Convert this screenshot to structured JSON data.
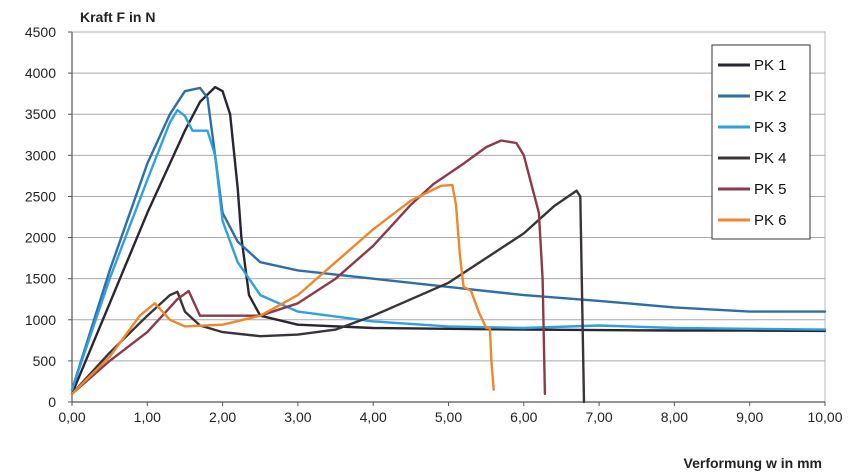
{
  "chart_data": {
    "type": "line",
    "title": "",
    "ylabel": "Kraft F in N",
    "xlabel": "Verformung w in mm",
    "xlim": [
      0,
      10
    ],
    "ylim": [
      0,
      4500
    ],
    "x_ticks": [
      0,
      1,
      2,
      3,
      4,
      5,
      6,
      7,
      8,
      9,
      10
    ],
    "x_tick_labels": [
      "0,00",
      "1,00",
      "2,00",
      "3,00",
      "4,00",
      "5,00",
      "6,00",
      "7,00",
      "8,00",
      "9,00",
      "10,00"
    ],
    "y_ticks": [
      0,
      500,
      1000,
      1500,
      2000,
      2500,
      3000,
      3500,
      4000,
      4500
    ],
    "y_tick_labels": [
      "0",
      "500",
      "1000",
      "1500",
      "2000",
      "2500",
      "3000",
      "3500",
      "4000",
      "4500"
    ],
    "grid": "horizontal",
    "legend_position": "top-right",
    "series": [
      {
        "name": "PK 1",
        "color": "#2a2530",
        "points": [
          [
            0,
            100
          ],
          [
            0.5,
            1200
          ],
          [
            1,
            2300
          ],
          [
            1.5,
            3300
          ],
          [
            1.7,
            3650
          ],
          [
            1.9,
            3830
          ],
          [
            2.0,
            3780
          ],
          [
            2.1,
            3500
          ],
          [
            2.2,
            2600
          ],
          [
            2.25,
            2000
          ],
          [
            2.35,
            1300
          ],
          [
            2.5,
            1050
          ],
          [
            3,
            940
          ],
          [
            4,
            900
          ],
          [
            5,
            890
          ],
          [
            6,
            880
          ],
          [
            7,
            875
          ],
          [
            8,
            870
          ],
          [
            9,
            868
          ],
          [
            10,
            865
          ]
        ]
      },
      {
        "name": "PK 2",
        "color": "#2e6ea8",
        "points": [
          [
            0,
            150
          ],
          [
            0.5,
            1600
          ],
          [
            1,
            2900
          ],
          [
            1.3,
            3500
          ],
          [
            1.5,
            3780
          ],
          [
            1.7,
            3820
          ],
          [
            1.8,
            3700
          ],
          [
            1.9,
            3000
          ],
          [
            2.0,
            2300
          ],
          [
            2.2,
            1950
          ],
          [
            2.5,
            1700
          ],
          [
            3,
            1600
          ],
          [
            4,
            1500
          ],
          [
            5,
            1400
          ],
          [
            6,
            1300
          ],
          [
            7,
            1230
          ],
          [
            8,
            1150
          ],
          [
            9,
            1100
          ],
          [
            10,
            1100
          ]
        ]
      },
      {
        "name": "PK 3",
        "color": "#2f9fe0",
        "points": [
          [
            0,
            150
          ],
          [
            0.5,
            1500
          ],
          [
            1,
            2700
          ],
          [
            1.3,
            3400
          ],
          [
            1.4,
            3550
          ],
          [
            1.5,
            3480
          ],
          [
            1.6,
            3300
          ],
          [
            1.8,
            3300
          ],
          [
            1.9,
            3000
          ],
          [
            2.0,
            2200
          ],
          [
            2.2,
            1700
          ],
          [
            2.5,
            1300
          ],
          [
            3,
            1100
          ],
          [
            4,
            980
          ],
          [
            5,
            920
          ],
          [
            6,
            900
          ],
          [
            7,
            930
          ],
          [
            8,
            900
          ],
          [
            9,
            890
          ],
          [
            10,
            880
          ]
        ]
      },
      {
        "name": "PK 4",
        "color": "#3a3438",
        "points": [
          [
            0,
            100
          ],
          [
            0.5,
            600
          ],
          [
            1,
            1050
          ],
          [
            1.3,
            1300
          ],
          [
            1.4,
            1340
          ],
          [
            1.5,
            1100
          ],
          [
            1.7,
            930
          ],
          [
            2,
            850
          ],
          [
            2.5,
            800
          ],
          [
            3,
            820
          ],
          [
            3.5,
            880
          ],
          [
            4,
            1050
          ],
          [
            5,
            1450
          ],
          [
            6,
            2050
          ],
          [
            6.4,
            2380
          ],
          [
            6.7,
            2570
          ],
          [
            6.75,
            2500
          ],
          [
            6.78,
            1000
          ],
          [
            6.8,
            0
          ]
        ]
      },
      {
        "name": "PK 5",
        "color": "#8b3a4a",
        "points": [
          [
            0,
            100
          ],
          [
            0.5,
            500
          ],
          [
            1,
            850
          ],
          [
            1.2,
            1050
          ],
          [
            1.4,
            1250
          ],
          [
            1.55,
            1350
          ],
          [
            1.7,
            1050
          ],
          [
            2,
            1050
          ],
          [
            2.5,
            1050
          ],
          [
            3,
            1200
          ],
          [
            3.5,
            1500
          ],
          [
            4,
            1900
          ],
          [
            4.5,
            2400
          ],
          [
            4.8,
            2650
          ],
          [
            5.2,
            2900
          ],
          [
            5.5,
            3100
          ],
          [
            5.7,
            3180
          ],
          [
            5.9,
            3150
          ],
          [
            6.0,
            3000
          ],
          [
            6.2,
            2300
          ],
          [
            6.25,
            1500
          ],
          [
            6.27,
            600
          ],
          [
            6.28,
            100
          ]
        ]
      },
      {
        "name": "PK 6",
        "color": "#f0862c",
        "points": [
          [
            0,
            100
          ],
          [
            0.5,
            550
          ],
          [
            0.9,
            1050
          ],
          [
            1.1,
            1200
          ],
          [
            1.3,
            1000
          ],
          [
            1.5,
            920
          ],
          [
            2,
            940
          ],
          [
            2.5,
            1050
          ],
          [
            3,
            1300
          ],
          [
            3.5,
            1700
          ],
          [
            4,
            2100
          ],
          [
            4.5,
            2450
          ],
          [
            4.9,
            2630
          ],
          [
            5.05,
            2640
          ],
          [
            5.1,
            2400
          ],
          [
            5.15,
            1800
          ],
          [
            5.2,
            1400
          ],
          [
            5.3,
            1350
          ],
          [
            5.4,
            1100
          ],
          [
            5.5,
            900
          ],
          [
            5.55,
            900
          ],
          [
            5.57,
            500
          ],
          [
            5.6,
            150
          ]
        ]
      }
    ]
  }
}
